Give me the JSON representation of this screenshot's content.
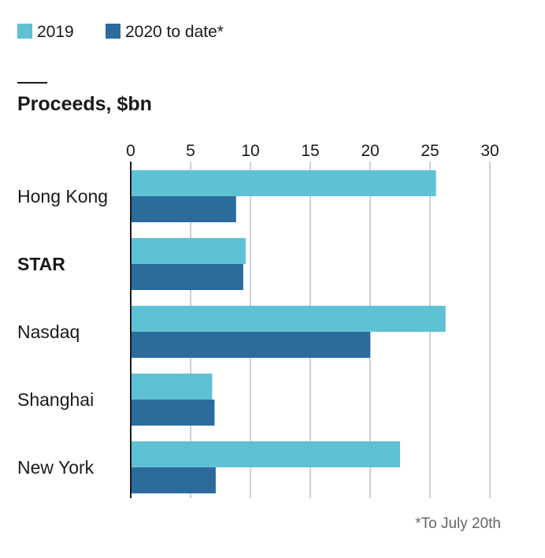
{
  "legend": {
    "items": [
      {
        "label": "2019",
        "color": "#5fc1d4"
      },
      {
        "label": "2020 to date*",
        "color": "#2c6c9c"
      }
    ]
  },
  "chart_data": {
    "type": "bar",
    "orientation": "horizontal",
    "title": "Proceeds, $bn",
    "categories": [
      "Hong Kong",
      "STAR",
      "Nasdaq",
      "Shanghai",
      "New York"
    ],
    "highlighted_category": "STAR",
    "series": [
      {
        "name": "2019",
        "color": "#5fc1d4",
        "values": [
          25.5,
          9.6,
          26.3,
          6.8,
          22.5
        ]
      },
      {
        "name": "2020 to date*",
        "color": "#2c6c9c",
        "values": [
          8.8,
          9.4,
          20.0,
          7.0,
          7.1
        ]
      }
    ],
    "xlim": [
      0,
      30
    ],
    "xticks": [
      0,
      5,
      10,
      15,
      20,
      25,
      30
    ],
    "grid": true,
    "legend_position": "top-left",
    "footnote": "*To July 20th"
  }
}
